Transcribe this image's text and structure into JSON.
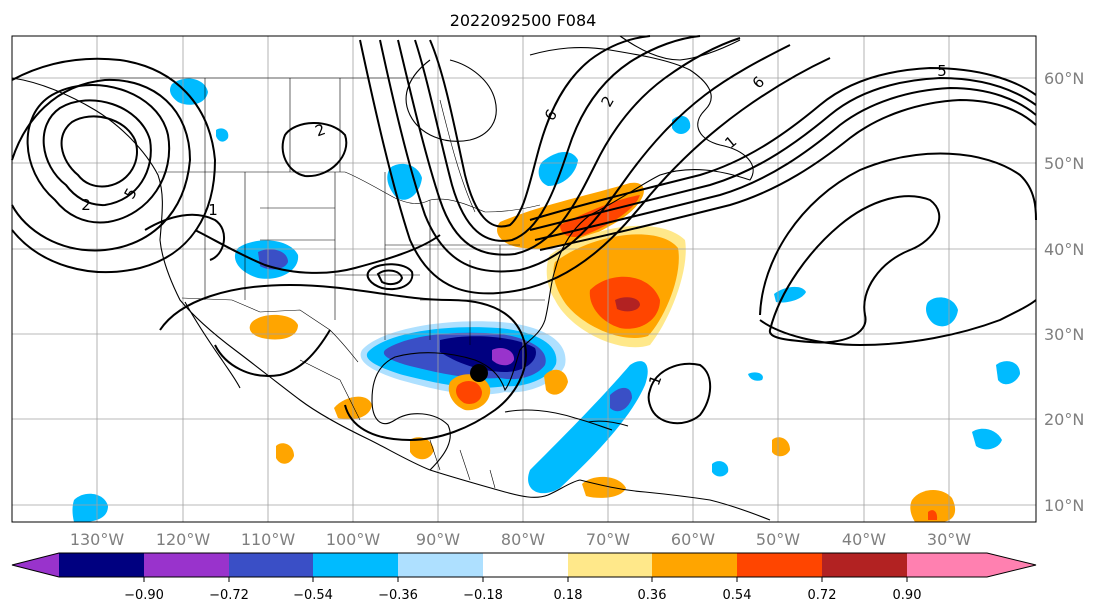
{
  "title": "2022092500 F084",
  "lon_labels": [
    "130°W",
    "120°W",
    "110°W",
    "100°W",
    "90°W",
    "80°W",
    "70°W",
    "60°W",
    "50°W",
    "40°W",
    "30°W"
  ],
  "lat_labels": [
    "60°N",
    "50°N",
    "40°N",
    "30°N",
    "20°N",
    "10°N"
  ],
  "colorbar": {
    "ticks": [
      "−0.90",
      "−0.72",
      "−0.54",
      "−0.36",
      "−0.18",
      "0.18",
      "0.36",
      "0.54",
      "0.72",
      "0.90"
    ],
    "colors": [
      "#9933cc",
      "#000080",
      "#3a4fc6",
      "#00bbff",
      "#aee0ff",
      "#ffffff",
      "#ffe88a",
      "#ffa500",
      "#ff4500",
      "#b22222",
      "#ff80b0"
    ]
  },
  "contour_labels": [
    "2",
    "5",
    "6",
    "5",
    "6",
    "2",
    "1",
    "1",
    "2",
    "1"
  ],
  "storm_marker": "black-dot"
}
